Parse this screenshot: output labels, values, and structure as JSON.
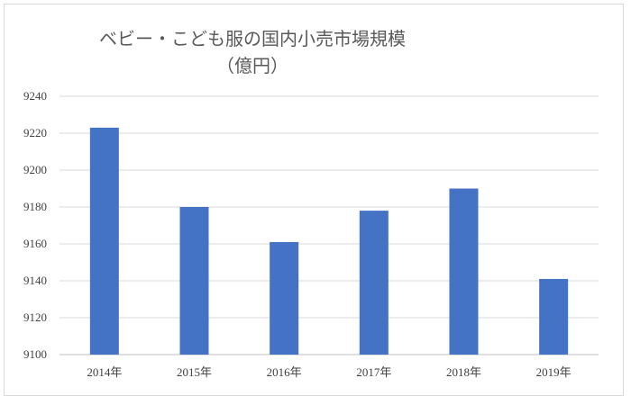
{
  "chart_data": {
    "type": "bar",
    "title": "ベビー・こども服の国内小売市場規模",
    "subtitle": "（億円）",
    "categories": [
      "2014年",
      "2015年",
      "2016年",
      "2017年",
      "2018年",
      "2019年"
    ],
    "values": [
      9223,
      9180,
      9161,
      9178,
      9190,
      9141
    ],
    "ylim": [
      9100,
      9240
    ],
    "yticks": [
      9100,
      9120,
      9140,
      9160,
      9180,
      9200,
      9220,
      9240
    ],
    "grid": true,
    "legend": "none",
    "bar_color": "#4472c4",
    "grid_color": "#d9d9d9"
  }
}
